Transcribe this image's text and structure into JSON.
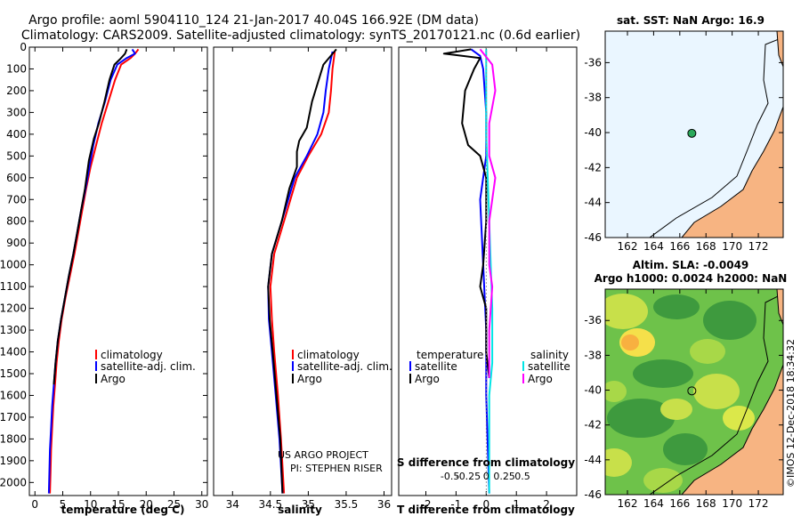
{
  "header": {
    "title1": "Argo profile: aoml 5904110_124 21-Jan-2017 40.04S 166.92E (DM data)",
    "title2": "Climatology: CARS2009. Satellite-adjusted climatology: synTS_20170121.nc (0.6d earlier)"
  },
  "colors": {
    "climatology": "#ff0000",
    "satellite": "#0000ff",
    "argo": "#000000",
    "satellite_salinity": "#00e5e5",
    "argo_salinity": "#ff00ff",
    "land": "#f7b482",
    "sst_bg": "#eaf6ff"
  },
  "credits": {
    "project": "US ARGO PROJECT",
    "pi": "PI: STEPHEN RISER",
    "stamp": "©IMOS 12-Dec-2018 18:34:32"
  },
  "chart_data": [
    {
      "type": "line",
      "id": "temperature",
      "xlabel": "temperature (deg C)",
      "xlim": [
        -1,
        31
      ],
      "ylim": [
        2060,
        0
      ],
      "xticks": [
        "0",
        "5",
        "10",
        "15",
        "20",
        "25",
        "30"
      ],
      "yticks": [
        "0",
        "100",
        "200",
        "300",
        "400",
        "500",
        "600",
        "700",
        "800",
        "900",
        "1000",
        "1100",
        "1200",
        "1300",
        "1400",
        "1500",
        "1600",
        "1700",
        "1800",
        "1900",
        "2000"
      ],
      "legend": [
        "climatology",
        "satellite-adj. clim.",
        "Argo"
      ],
      "series": [
        {
          "name": "climatology",
          "color": "#ff0000",
          "points": [
            [
              18.6,
              10
            ],
            [
              18,
              30
            ],
            [
              17.2,
              50
            ],
            [
              15.5,
              80
            ],
            [
              14.4,
              150
            ],
            [
              13.2,
              250
            ],
            [
              12,
              350
            ],
            [
              11,
              450
            ],
            [
              10,
              550
            ],
            [
              9.2,
              650
            ],
            [
              8.5,
              750
            ],
            [
              7.8,
              850
            ],
            [
              7.1,
              950
            ],
            [
              6.3,
              1050
            ],
            [
              5.5,
              1150
            ],
            [
              4.8,
              1250
            ],
            [
              4.3,
              1350
            ],
            [
              3.9,
              1450
            ],
            [
              3.6,
              1550
            ],
            [
              3.3,
              1650
            ],
            [
              3.1,
              1750
            ],
            [
              2.9,
              1850
            ],
            [
              2.8,
              1950
            ],
            [
              2.7,
              2050
            ]
          ]
        },
        {
          "name": "satellite-adj. clim.",
          "color": "#0000ff",
          "points": [
            [
              17.5,
              10
            ],
            [
              18,
              30
            ],
            [
              16.5,
              50
            ],
            [
              14.8,
              80
            ],
            [
              13.6,
              150
            ],
            [
              12.6,
              250
            ],
            [
              11.4,
              350
            ],
            [
              10.5,
              450
            ],
            [
              9.8,
              550
            ],
            [
              9.1,
              650
            ],
            [
              8.3,
              750
            ],
            [
              7.6,
              850
            ],
            [
              6.9,
              950
            ],
            [
              6.1,
              1050
            ],
            [
              5.4,
              1150
            ],
            [
              4.7,
              1250
            ],
            [
              4.1,
              1350
            ],
            [
              3.7,
              1450
            ],
            [
              3.4,
              1550
            ],
            [
              3.1,
              1650
            ],
            [
              2.9,
              1750
            ],
            [
              2.7,
              1850
            ],
            [
              2.6,
              1950
            ],
            [
              2.5,
              2050
            ]
          ]
        },
        {
          "name": "Argo",
          "color": "#000000",
          "points": [
            [
              16.5,
              10
            ],
            [
              16.2,
              30
            ],
            [
              15.3,
              55
            ],
            [
              14.3,
              80
            ],
            [
              13.4,
              150
            ],
            [
              12.5,
              250
            ],
            [
              11.5,
              350
            ],
            [
              10.6,
              420
            ],
            [
              9.7,
              520
            ],
            [
              9,
              650
            ],
            [
              8.3,
              750
            ],
            [
              7.6,
              850
            ],
            [
              6.9,
              950
            ],
            [
              6.1,
              1050
            ],
            [
              5.4,
              1150
            ],
            [
              4.7,
              1250
            ],
            [
              4.1,
              1350
            ],
            [
              3.7,
              1450
            ],
            [
              3.4,
              1550
            ]
          ]
        }
      ]
    },
    {
      "type": "line",
      "id": "salinity",
      "xlabel": "salinity",
      "xlim": [
        33.75,
        36.1
      ],
      "ylim": [
        2060,
        0
      ],
      "xticks": [
        "34",
        "34.5",
        "35",
        "35.5",
        "36"
      ],
      "legend": [
        "climatology",
        "satellite-adj. clim.",
        "Argo"
      ],
      "series": [
        {
          "name": "climatology",
          "color": "#ff0000",
          "points": [
            [
              35.35,
              20
            ],
            [
              35.32,
              100
            ],
            [
              35.3,
              200
            ],
            [
              35.27,
              300
            ],
            [
              35.17,
              400
            ],
            [
              35.0,
              500
            ],
            [
              34.85,
              600
            ],
            [
              34.68,
              800
            ],
            [
              34.55,
              950
            ],
            [
              34.5,
              1100
            ],
            [
              34.52,
              1250
            ],
            [
              34.55,
              1400
            ],
            [
              34.6,
              1600
            ],
            [
              34.64,
              1800
            ],
            [
              34.68,
              2050
            ]
          ]
        },
        {
          "name": "satellite-adj. clim.",
          "color": "#0000ff",
          "points": [
            [
              35.32,
              20
            ],
            [
              35.27,
              100
            ],
            [
              35.23,
              200
            ],
            [
              35.2,
              300
            ],
            [
              35.12,
              400
            ],
            [
              34.98,
              500
            ],
            [
              34.82,
              600
            ],
            [
              34.65,
              800
            ],
            [
              34.52,
              950
            ],
            [
              34.47,
              1100
            ],
            [
              34.48,
              1250
            ],
            [
              34.52,
              1400
            ],
            [
              34.57,
              1600
            ],
            [
              34.62,
              1800
            ],
            [
              34.66,
              2050
            ]
          ]
        },
        {
          "name": "Argo",
          "color": "#000000",
          "points": [
            [
              35.37,
              10
            ],
            [
              35.2,
              80
            ],
            [
              35.05,
              250
            ],
            [
              34.98,
              370
            ],
            [
              34.88,
              430
            ],
            [
              34.85,
              480
            ],
            [
              34.85,
              550
            ],
            [
              34.75,
              650
            ],
            [
              34.65,
              800
            ],
            [
              34.52,
              950
            ],
            [
              34.47,
              1100
            ],
            [
              34.49,
              1250
            ],
            [
              34.53,
              1400
            ],
            [
              34.58,
              1600
            ],
            [
              34.63,
              1800
            ],
            [
              34.66,
              2050
            ]
          ]
        }
      ]
    },
    {
      "type": "line",
      "id": "difference",
      "xlabel": "T difference from climatology",
      "xlim": [
        -2.9,
        3.0
      ],
      "ylim": [
        2060,
        0
      ],
      "xticks": [
        "-2",
        "-1",
        "0",
        "1",
        "2"
      ],
      "s_axis_label": "S difference from climatology",
      "s_ticks": [
        "-0.5",
        "-0.25",
        "0",
        "0.25",
        "0.5"
      ],
      "legend_temperature": {
        "title": "temperature",
        "items": [
          "satellite",
          "Argo"
        ]
      },
      "legend_salinity": {
        "title": "salinity",
        "items": [
          "satellite",
          "Argo"
        ]
      },
      "series": [
        {
          "name": "T satellite",
          "color": "#0000ff",
          "points": [
            [
              -0.5,
              10
            ],
            [
              -0.2,
              40
            ],
            [
              -0.1,
              100
            ],
            [
              0,
              300
            ],
            [
              0,
              500
            ],
            [
              -0.2,
              700
            ],
            [
              -0.1,
              1000
            ],
            [
              0,
              1300
            ],
            [
              0,
              1600
            ],
            [
              0.1,
              2050
            ]
          ]
        },
        {
          "name": "T Argo",
          "color": "#000000",
          "points": [
            [
              -0.5,
              10
            ],
            [
              -1.4,
              30
            ],
            [
              -0.2,
              50
            ],
            [
              -0.4,
              100
            ],
            [
              -0.7,
              200
            ],
            [
              -0.8,
              350
            ],
            [
              -0.6,
              450
            ],
            [
              -0.2,
              500
            ],
            [
              0,
              600
            ],
            [
              0,
              800
            ],
            [
              -0.1,
              1000
            ],
            [
              -0.2,
              1100
            ],
            [
              0,
              1200
            ],
            [
              0,
              1400
            ],
            [
              0.1,
              1520
            ]
          ]
        },
        {
          "name": "S satellite",
          "color": "#00e5e5",
          "points": [
            [
              0,
              10
            ],
            [
              0,
              400
            ],
            [
              0.1,
              800
            ],
            [
              0.2,
              1200
            ],
            [
              0.2,
              1450
            ],
            [
              0.1,
              1600
            ],
            [
              0.1,
              2050
            ]
          ]
        },
        {
          "name": "S Argo",
          "color": "#ff00ff",
          "points": [
            [
              -0.2,
              10
            ],
            [
              0.2,
              80
            ],
            [
              0.3,
              200
            ],
            [
              0.1,
              350
            ],
            [
              0.1,
              500
            ],
            [
              0.3,
              600
            ],
            [
              0.1,
              800
            ],
            [
              0.1,
              1000
            ],
            [
              0.2,
              1100
            ],
            [
              0.1,
              1300
            ],
            [
              0.1,
              1520
            ]
          ]
        }
      ]
    },
    {
      "type": "map",
      "id": "sst-map",
      "title": "sat. SST: NaN Argo: 16.9",
      "xlim": [
        160.3,
        173.9
      ],
      "ylim": [
        -46,
        -34.2
      ],
      "xticks": [
        "162",
        "164",
        "166",
        "168",
        "170",
        "172"
      ],
      "yticks": [
        "-36",
        "-38",
        "-40",
        "-42",
        "-44",
        "-46"
      ],
      "float_position": [
        166.92,
        -40.04
      ]
    },
    {
      "type": "map",
      "id": "sla-map",
      "title": "Altim. SLA: -0.0049",
      "subtitle": "Argo h1000: 0.0024 h2000: NaN",
      "xlim": [
        160.3,
        173.9
      ],
      "ylim": [
        -46,
        -34.2
      ],
      "xticks": [
        "162",
        "164",
        "166",
        "168",
        "170",
        "172"
      ],
      "yticks": [
        "-36",
        "-38",
        "-40",
        "-42",
        "-44",
        "-46"
      ],
      "float_position": [
        166.92,
        -40.04
      ]
    }
  ]
}
